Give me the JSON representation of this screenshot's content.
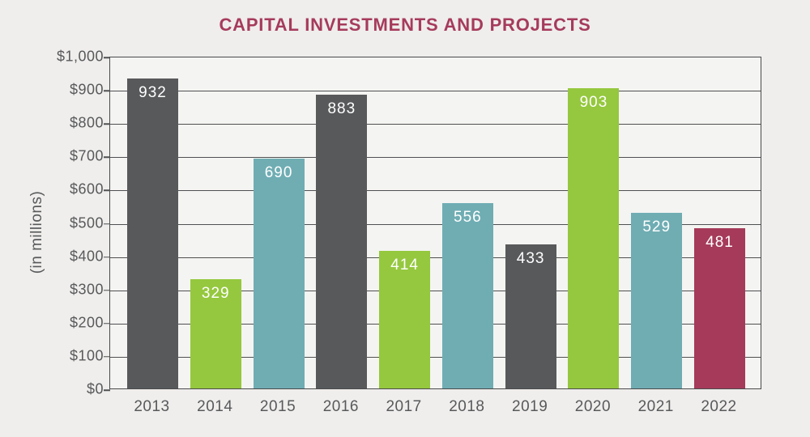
{
  "chart_data": {
    "type": "bar",
    "title": "CAPITAL INVESTMENTS AND PROJECTS",
    "ylabel": "(in millions)",
    "xlabel": "",
    "categories": [
      "2013",
      "2014",
      "2015",
      "2016",
      "2017",
      "2018",
      "2019",
      "2020",
      "2021",
      "2022"
    ],
    "values": [
      932,
      329,
      690,
      883,
      414,
      556,
      433,
      903,
      529,
      481
    ],
    "bar_color_roles": [
      "gray",
      "green",
      "teal",
      "gray",
      "green",
      "teal",
      "gray",
      "green",
      "teal",
      "maroon"
    ],
    "palette": {
      "gray": "#58595b",
      "green": "#95c83e",
      "teal": "#6fadb3",
      "maroon": "#a53a5a"
    },
    "y_tick_labels": [
      "$1,000",
      "$900",
      "$800",
      "$700",
      "$600",
      "$500",
      "$400",
      "$300",
      "$200",
      "$100",
      "$0"
    ],
    "ylim": [
      0,
      1000
    ],
    "grid": true,
    "legend": false,
    "value_labels_shown": true
  },
  "colors": {
    "title": "#a63b5c",
    "background": "#efeeec",
    "plot_background": "#f4f4f2",
    "axis_text": "#58595b",
    "gridline": "#4f5052",
    "bar_label": "#ffffff"
  }
}
